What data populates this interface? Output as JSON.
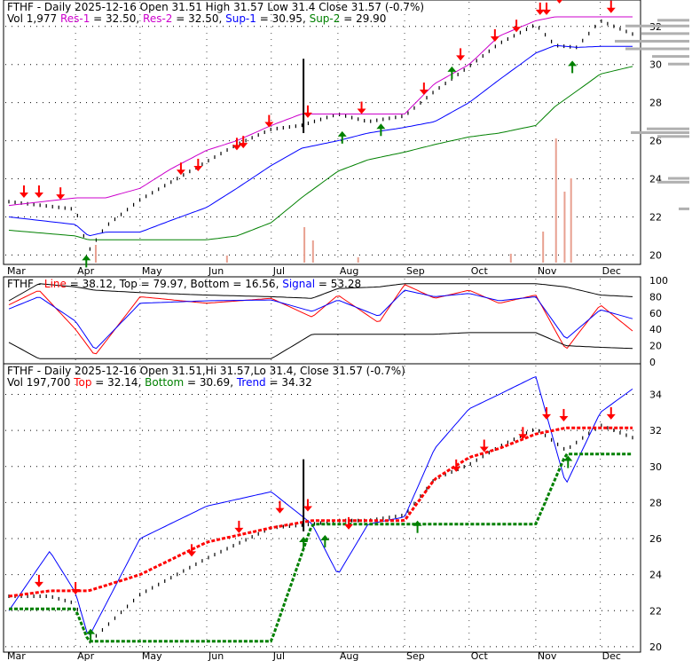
{
  "colors": {
    "red": "#ff0000",
    "blue": "#0000ff",
    "green": "#008000",
    "magenta": "#cc00cc",
    "price": "#000000",
    "volume": "#e8a090",
    "volume_profile": "#b0b0b0",
    "grid": "#000000"
  },
  "x_months": [
    "Mar",
    "Apr",
    "May",
    "Jun",
    "Jul",
    "Aug",
    "Sep",
    "Oct",
    "Nov",
    "Dec"
  ],
  "panel1": {
    "header_line1": [
      {
        "text": "FTHF - Daily 2025-12-16 Open 31.51  High 31.57  Low 31.4  Close 31.57 (-0.7%)",
        "color": "#000000"
      }
    ],
    "header_line2": [
      {
        "text": "Vol 1,977 ",
        "color": "#000000"
      },
      {
        "text": "Res-1",
        "color": "#cc00cc"
      },
      {
        "text": " = 32.50, ",
        "color": "#000000"
      },
      {
        "text": "Res-2",
        "color": "#cc00cc"
      },
      {
        "text": " = 32.50, ",
        "color": "#000000"
      },
      {
        "text": "Sup-1",
        "color": "#0000ff"
      },
      {
        "text": " = 30.95, ",
        "color": "#000000"
      },
      {
        "text": "Sup-2",
        "color": "#008000"
      },
      {
        "text": " = 29.90",
        "color": "#000000"
      }
    ],
    "y_ticks": [
      20,
      22,
      24,
      26,
      28,
      30,
      32
    ]
  },
  "panel2": {
    "header": [
      {
        "text": "FTHF - ",
        "color": "#000000"
      },
      {
        "text": "Line",
        "color": "#ff0000"
      },
      {
        "text": " = 38.12, ",
        "color": "#000000"
      },
      {
        "text": "Top",
        "color": "#000000"
      },
      {
        "text": " = 79.97, ",
        "color": "#000000"
      },
      {
        "text": "Bottom",
        "color": "#000000"
      },
      {
        "text": " = 16.56, ",
        "color": "#000000"
      },
      {
        "text": "Signal",
        "color": "#0000ff"
      },
      {
        "text": " = 53.28",
        "color": "#000000"
      }
    ],
    "y_ticks": [
      0,
      20,
      40,
      60,
      80,
      100
    ]
  },
  "panel3": {
    "header_line1": [
      {
        "text": "FTHF - Daily 2025-12-16 Open 31.51,Hi 31.57,Lo 31.4, Close 31.57 (-0.7%)",
        "color": "#000000"
      }
    ],
    "header_line2": [
      {
        "text": "Vol 197,700 ",
        "color": "#000000"
      },
      {
        "text": "Top",
        "color": "#ff0000"
      },
      {
        "text": " = 32.14, ",
        "color": "#000000"
      },
      {
        "text": "Bottom",
        "color": "#008000"
      },
      {
        "text": " = 30.69, ",
        "color": "#000000"
      },
      {
        "text": "Trend",
        "color": "#0000ff"
      },
      {
        "text": " = 34.32",
        "color": "#000000"
      }
    ],
    "y_ticks": [
      20,
      22,
      24,
      26,
      28,
      30,
      32,
      34
    ]
  },
  "chart_data": [
    {
      "type": "line",
      "title": "FTHF - Daily 2025-12-16",
      "ylim": [
        19.6,
        33.2
      ],
      "x": [
        "2025-03-01",
        "2025-04-01",
        "2025-04-07",
        "2025-04-15",
        "2025-05-01",
        "2025-05-15",
        "2025-06-01",
        "2025-06-15",
        "2025-07-01",
        "2025-07-15",
        "2025-08-01",
        "2025-08-15",
        "2025-09-01",
        "2025-09-15",
        "2025-10-01",
        "2025-10-15",
        "2025-11-01",
        "2025-11-10",
        "2025-11-20",
        "2025-12-01",
        "2025-12-16"
      ],
      "series": [
        {
          "name": "Close",
          "values": [
            22.8,
            22.4,
            20.2,
            21.5,
            22.9,
            23.8,
            24.9,
            25.8,
            26.6,
            26.8,
            27.4,
            27.0,
            27.3,
            28.6,
            29.9,
            31.1,
            32.1,
            31.0,
            30.9,
            32.3,
            31.6
          ]
        },
        {
          "name": "Res-1",
          "values": [
            22.6,
            23.0,
            23.0,
            23.0,
            23.5,
            24.5,
            25.5,
            26.0,
            26.8,
            27.4,
            27.4,
            27.4,
            27.4,
            29.0,
            30.0,
            31.5,
            32.3,
            32.5,
            32.5,
            32.5,
            32.5
          ]
        },
        {
          "name": "Sup-1",
          "values": [
            22.0,
            21.6,
            21.0,
            21.2,
            21.2,
            21.8,
            22.5,
            23.5,
            24.7,
            25.6,
            26.0,
            26.4,
            26.7,
            27.0,
            28.0,
            29.2,
            30.6,
            31.0,
            30.9,
            30.95,
            30.95
          ]
        },
        {
          "name": "Sup-2",
          "values": [
            21.3,
            21.0,
            20.8,
            20.8,
            20.8,
            20.8,
            20.8,
            21.0,
            21.7,
            23.0,
            24.4,
            25.0,
            25.4,
            25.8,
            26.2,
            26.4,
            26.8,
            27.8,
            28.6,
            29.5,
            29.9
          ]
        }
      ],
      "ylabel": "",
      "xlabel": ""
    },
    {
      "type": "line",
      "title": "",
      "ylim": [
        0,
        100
      ],
      "x": [
        "2025-03-01",
        "2025-03-15",
        "2025-04-01",
        "2025-04-10",
        "2025-05-01",
        "2025-06-01",
        "2025-07-01",
        "2025-07-20",
        "2025-08-01",
        "2025-08-20",
        "2025-09-01",
        "2025-09-15",
        "2025-10-01",
        "2025-10-15",
        "2025-11-01",
        "2025-11-15",
        "2025-12-01",
        "2025-12-16"
      ],
      "series": [
        {
          "name": "Line",
          "values": [
            70,
            88,
            40,
            8,
            80,
            72,
            78,
            55,
            82,
            48,
            95,
            78,
            88,
            72,
            82,
            15,
            70,
            38
          ]
        },
        {
          "name": "Signal",
          "values": [
            65,
            80,
            50,
            15,
            72,
            75,
            76,
            62,
            76,
            56,
            88,
            80,
            84,
            75,
            80,
            28,
            64,
            53
          ]
        },
        {
          "name": "Top",
          "values": [
            75,
            96,
            92,
            88,
            85,
            82,
            80,
            78,
            90,
            92,
            96,
            96,
            96,
            96,
            96,
            92,
            82,
            80
          ]
        },
        {
          "name": "Bottom",
          "values": [
            24,
            4,
            4,
            4,
            4,
            4,
            4,
            34,
            34,
            34,
            34,
            34,
            36,
            36,
            36,
            20,
            18,
            16.6
          ]
        }
      ]
    },
    {
      "type": "line",
      "title": "FTHF - Daily 2025-12-16",
      "ylim": [
        19.8,
        35.5
      ],
      "x": [
        "2025-03-01",
        "2025-03-20",
        "2025-04-01",
        "2025-04-07",
        "2025-05-01",
        "2025-06-01",
        "2025-07-01",
        "2025-07-20",
        "2025-08-01",
        "2025-08-15",
        "2025-09-01",
        "2025-09-15",
        "2025-10-01",
        "2025-10-15",
        "2025-11-01",
        "2025-11-15",
        "2025-12-01",
        "2025-12-16"
      ],
      "series": [
        {
          "name": "Close",
          "values": [
            22.8,
            22.8,
            22.4,
            20.2,
            22.9,
            24.9,
            26.6,
            26.8,
            27.0,
            27.0,
            27.3,
            29.3,
            30.1,
            31.1,
            32.1,
            30.9,
            32.3,
            31.6
          ]
        },
        {
          "name": "Trend",
          "values": [
            22.0,
            25.3,
            23.0,
            20.5,
            26.0,
            27.8,
            28.6,
            26.8,
            24.0,
            26.8,
            27.2,
            31.0,
            33.2,
            34.0,
            35.0,
            29.0,
            33.0,
            34.3
          ]
        },
        {
          "name": "Top",
          "values": [
            22.8,
            23.1,
            23.1,
            23.1,
            24.0,
            25.8,
            26.6,
            27.0,
            27.0,
            27.0,
            27.0,
            29.3,
            30.5,
            31.0,
            31.8,
            32.14,
            32.14,
            32.14
          ]
        },
        {
          "name": "Bottom",
          "values": [
            22.1,
            22.1,
            22.1,
            20.3,
            20.3,
            20.3,
            20.3,
            26.8,
            26.8,
            26.8,
            26.8,
            26.8,
            26.8,
            26.8,
            26.8,
            30.69,
            30.69,
            30.69
          ]
        }
      ]
    }
  ]
}
